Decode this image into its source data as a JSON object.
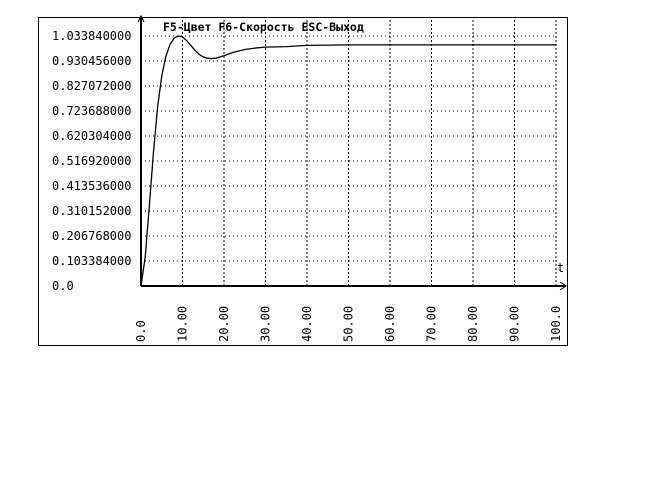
{
  "chart_data": {
    "type": "line",
    "title": "",
    "header_text": "F5-Цвет  F6-Скорость  ESC-Выход",
    "xlabel": "t",
    "ylabel": "",
    "xlim": [
      0,
      100
    ],
    "ylim": [
      0,
      1.03384
    ],
    "grid": true,
    "y_ticks": [
      "0.0",
      "0.103384000",
      "0.206768000",
      "0.310152000",
      "0.413536000",
      "0.516920000",
      "0.620304000",
      "0.723688000",
      "0.827072000",
      "0.930456000",
      "1.033840000"
    ],
    "x_ticks": [
      "0.0",
      "10.00",
      "20.00",
      "30.00",
      "40.00",
      "50.00",
      "60.00",
      "70.00",
      "80.00",
      "90.00",
      "100.0"
    ],
    "series": [
      {
        "x": [
          0,
          1,
          2,
          3,
          4,
          5,
          6,
          7,
          8,
          9,
          10,
          11,
          12,
          13,
          14,
          15,
          16,
          17,
          18,
          20,
          22,
          25,
          28,
          30,
          35,
          40,
          50,
          60,
          70,
          80,
          90,
          100
        ],
        "y": [
          0,
          0.12,
          0.33,
          0.55,
          0.74,
          0.87,
          0.95,
          1.0,
          1.025,
          1.034,
          1.03,
          1.015,
          0.995,
          0.975,
          0.958,
          0.947,
          0.942,
          0.94,
          0.942,
          0.952,
          0.965,
          0.978,
          0.985,
          0.988,
          0.99,
          0.995,
          0.997,
          0.997,
          0.997,
          0.997,
          0.997,
          0.997
        ],
        "color": "#000000"
      }
    ]
  }
}
